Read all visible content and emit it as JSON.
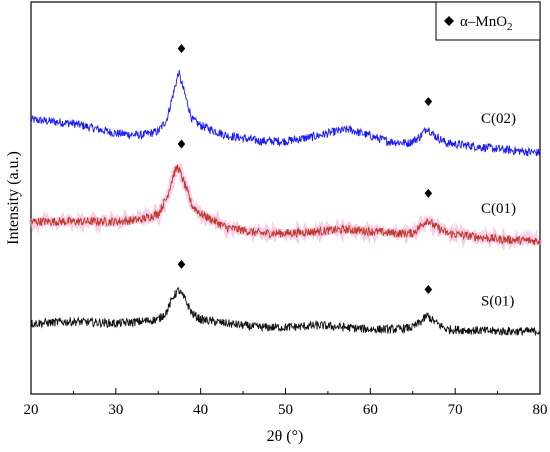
{
  "chart_data": {
    "type": "line",
    "xlabel": "2θ (°)",
    "ylabel": "Intensity (a.u.)",
    "xlim": [
      20,
      80
    ],
    "xticks": [
      20,
      30,
      40,
      50,
      60,
      70,
      80
    ],
    "yticks_shown": false,
    "grid": false,
    "legend": {
      "placement": "top-right",
      "entries": [
        {
          "marker": "diamond",
          "label_prefix": "α–MnO",
          "label_subscript": "2"
        }
      ]
    },
    "peak_markers": [
      37.5,
      66.6
    ],
    "series": [
      {
        "name": "C(02)",
        "color": "#1a1aff",
        "points": [
          [
            20,
            0.7
          ],
          [
            25,
            0.69
          ],
          [
            30,
            0.665
          ],
          [
            33,
            0.66
          ],
          [
            35,
            0.67
          ],
          [
            36,
            0.7
          ],
          [
            36.7,
            0.76
          ],
          [
            37.4,
            0.82
          ],
          [
            38.2,
            0.76
          ],
          [
            39,
            0.7
          ],
          [
            40,
            0.685
          ],
          [
            43,
            0.66
          ],
          [
            47,
            0.645
          ],
          [
            50,
            0.645
          ],
          [
            53,
            0.655
          ],
          [
            56,
            0.67
          ],
          [
            57.5,
            0.675
          ],
          [
            59,
            0.665
          ],
          [
            62,
            0.645
          ],
          [
            64.5,
            0.64
          ],
          [
            65.8,
            0.655
          ],
          [
            66.7,
            0.68
          ],
          [
            67.5,
            0.66
          ],
          [
            69,
            0.64
          ],
          [
            75,
            0.625
          ],
          [
            80,
            0.615
          ]
        ]
      },
      {
        "name": "C(01)",
        "color": "#c0392b",
        "points": [
          [
            20,
            0.44
          ],
          [
            25,
            0.44
          ],
          [
            30,
            0.44
          ],
          [
            33,
            0.445
          ],
          [
            35,
            0.46
          ],
          [
            36,
            0.5
          ],
          [
            36.8,
            0.56
          ],
          [
            37.3,
            0.58
          ],
          [
            38.2,
            0.53
          ],
          [
            39,
            0.48
          ],
          [
            40,
            0.46
          ],
          [
            43,
            0.425
          ],
          [
            47,
            0.41
          ],
          [
            50,
            0.41
          ],
          [
            54,
            0.415
          ],
          [
            57,
            0.42
          ],
          [
            60,
            0.415
          ],
          [
            63,
            0.41
          ],
          [
            65,
            0.41
          ],
          [
            66,
            0.43
          ],
          [
            66.7,
            0.445
          ],
          [
            67.5,
            0.43
          ],
          [
            69,
            0.41
          ],
          [
            75,
            0.395
          ],
          [
            80,
            0.39
          ]
        ]
      },
      {
        "name": "S(01)",
        "color": "#111111",
        "points": [
          [
            20,
            0.18
          ],
          [
            25,
            0.185
          ],
          [
            30,
            0.18
          ],
          [
            33,
            0.185
          ],
          [
            35,
            0.19
          ],
          [
            36,
            0.21
          ],
          [
            36.8,
            0.25
          ],
          [
            37.4,
            0.265
          ],
          [
            38.2,
            0.24
          ],
          [
            39,
            0.205
          ],
          [
            40,
            0.19
          ],
          [
            43,
            0.18
          ],
          [
            47,
            0.17
          ],
          [
            50,
            0.17
          ],
          [
            54,
            0.175
          ],
          [
            57,
            0.17
          ],
          [
            60,
            0.165
          ],
          [
            63,
            0.165
          ],
          [
            65,
            0.17
          ],
          [
            66,
            0.185
          ],
          [
            66.7,
            0.2
          ],
          [
            67.5,
            0.185
          ],
          [
            69,
            0.165
          ],
          [
            75,
            0.16
          ],
          [
            80,
            0.16
          ]
        ]
      }
    ]
  }
}
